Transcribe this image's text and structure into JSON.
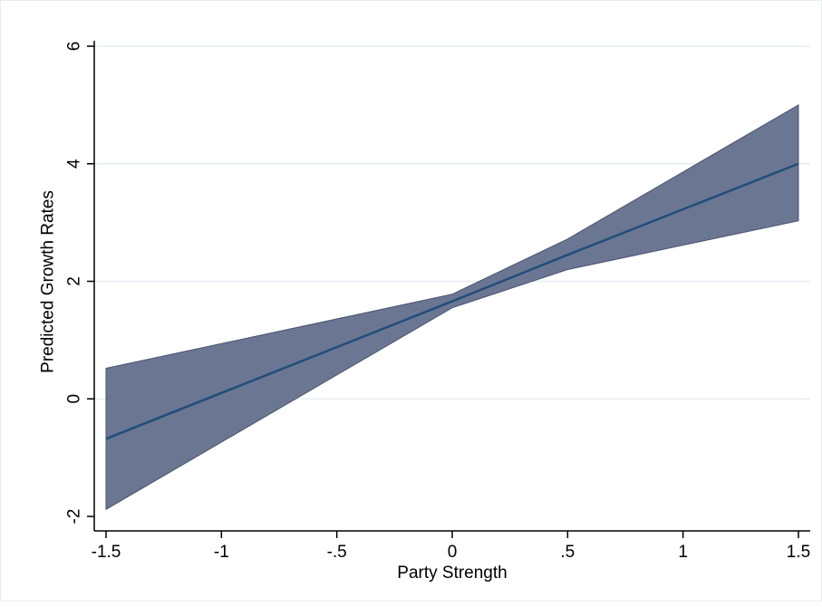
{
  "chart_data": {
    "type": "line",
    "title": "",
    "xlabel": "Party Strength",
    "ylabel": "Predicted Growth Rates",
    "xlim": [
      -1.5,
      1.5
    ],
    "ylim": [
      -2,
      6
    ],
    "x_ticks": [
      {
        "value": -1.5,
        "label": "-1.5"
      },
      {
        "value": -1,
        "label": "-1"
      },
      {
        "value": -0.5,
        "label": "-.5"
      },
      {
        "value": 0,
        "label": "0"
      },
      {
        "value": 0.5,
        "label": ".5"
      },
      {
        "value": 1,
        "label": "1"
      },
      {
        "value": 1.5,
        "label": "1.5"
      }
    ],
    "y_ticks": [
      {
        "value": -2,
        "label": "-2"
      },
      {
        "value": 0,
        "label": "0"
      },
      {
        "value": 2,
        "label": "2"
      },
      {
        "value": 4,
        "label": "4"
      },
      {
        "value": 6,
        "label": "6"
      }
    ],
    "grid": true,
    "legend": "none",
    "series": [
      {
        "kind": "line",
        "color": "#1f4e79",
        "x": [
          -1.5,
          0,
          0.5,
          1.5
        ],
        "y": [
          -0.68,
          1.66,
          2.45,
          4.0
        ]
      }
    ],
    "band": {
      "kind": "confidence-interval",
      "color": "#6b7693",
      "x": [
        -1.5,
        0,
        0.5,
        1.5
      ],
      "upper": [
        0.52,
        1.78,
        2.72,
        5.0
      ],
      "lower": [
        -1.88,
        1.55,
        2.2,
        3.03
      ]
    },
    "colors": {
      "grid": "#e4eef1",
      "axis": "#000000",
      "frame": "#e6eef2"
    }
  }
}
